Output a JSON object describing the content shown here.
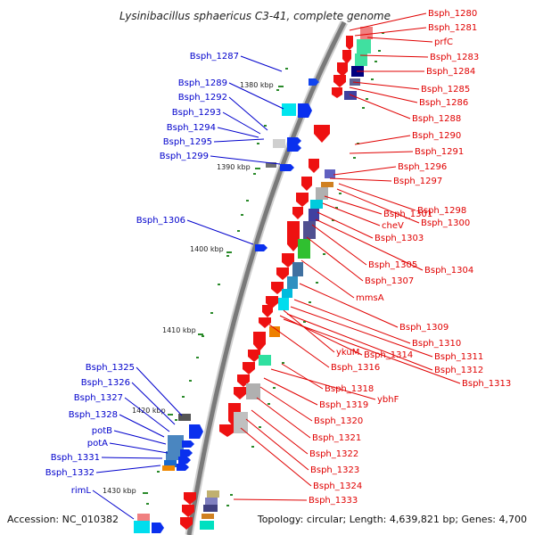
{
  "title": "Lysinibacillus sphaericus C3-41, complete genome",
  "accession": "Accession: NC_010382",
  "topology": "Topology: circular; Length: 4,639,821 bp; Genes: 4,700",
  "colors": {
    "backbone": "#808080",
    "forward_label": "#e00000",
    "reverse_label": "#0000cc",
    "tick": "#2a8a2a"
  },
  "kbp_marks": [
    "1380 kbp",
    "1390 kbp",
    "1400 kbp",
    "1410 kbp",
    "1420 kbp",
    "1430 kbp"
  ],
  "labels_right": [
    "Bsph_1280",
    "Bsph_1281",
    "prfC",
    "Bsph_1283",
    "Bsph_1284",
    "Bsph_1285",
    "Bsph_1286",
    "Bsph_1288",
    "Bsph_1290",
    "Bsph_1291",
    "Bsph_1296",
    "Bsph_1297",
    "Bsph_1298",
    "Bsph_1300",
    "Bsph_1301",
    "cheV",
    "Bsph_1303",
    "Bsph_1305",
    "Bsph_1304",
    "Bsph_1307",
    "mmsA",
    "Bsph_1309",
    "Bsph_1310",
    "Bsph_1311",
    "ykuM",
    "Bsph_1314",
    "Bsph_1312",
    "Bsph_1316",
    "Bsph_1313",
    "Bsph_1318",
    "ybhF",
    "Bsph_1319",
    "Bsph_1320",
    "Bsph_1321",
    "Bsph_1322",
    "Bsph_1323",
    "Bsph_1324",
    "Bsph_1333"
  ],
  "labels_left": [
    "Bsph_1287",
    "Bsph_1289",
    "Bsph_1292",
    "Bsph_1293",
    "Bsph_1294",
    "Bsph_1295",
    "Bsph_1299",
    "Bsph_1306",
    "Bsph_1325",
    "Bsph_1326",
    "Bsph_1327",
    "Bsph_1328",
    "potB",
    "potA",
    "Bsph_1331",
    "Bsph_1332",
    "rimL"
  ]
}
